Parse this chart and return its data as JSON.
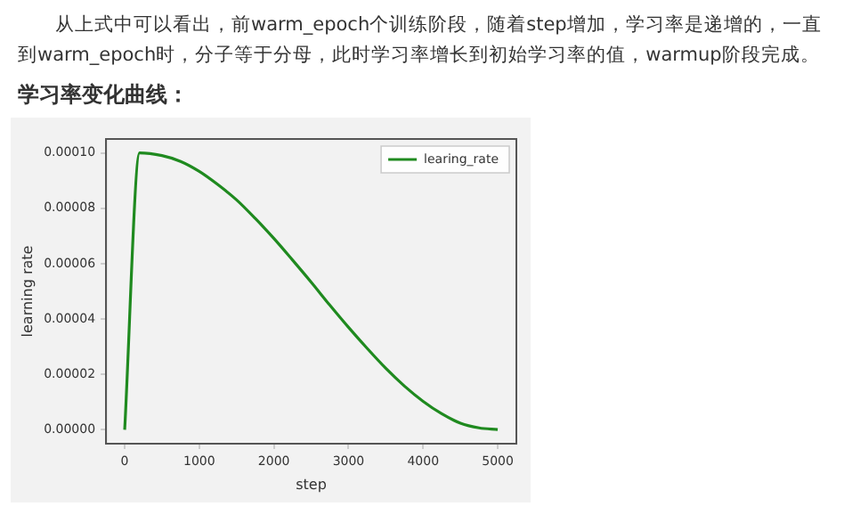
{
  "chart_data": {
    "type": "line",
    "title": "学习率变化曲线：",
    "annotations": [
      "从上式中可以看出，前warm_epoch个训练阶段，随着step增加，学习率是递增的，一直到warm_epoch时，分子等于分母，此时学习率增长到初始学习率的值，warmup阶段完成。"
    ],
    "xlabel": "step",
    "ylabel": "learning rate",
    "series": [
      {
        "name": "learing_rate",
        "color": "#1f8a1f",
        "x": [
          0,
          200,
          500,
          750,
          1000,
          1250,
          1500,
          1750,
          2000,
          2250,
          2500,
          2750,
          3000,
          3250,
          3500,
          3750,
          4000,
          4250,
          4500,
          4750,
          5000
        ],
        "values": [
          0,
          0.0001,
          9.9e-05,
          9.69e-05,
          9.33e-05,
          8.85e-05,
          8.3e-05,
          7.63e-05,
          6.91e-05,
          6.13e-05,
          5.33e-05,
          4.5e-05,
          3.7e-05,
          2.94e-05,
          2.22e-05,
          1.58e-05,
          1.03e-05,
          5.8e-06,
          2.4e-06,
          7e-07,
          1e-07
        ]
      }
    ],
    "xlim": [
      -250,
      5250
    ],
    "xticks": [
      0,
      1000,
      2000,
      3000,
      4000,
      5000
    ],
    "ylim": [
      -5e-06,
      0.000105
    ],
    "yticks": [
      {
        "value": 0,
        "label": "0.00000"
      },
      {
        "value": 2e-05,
        "label": "0.00002"
      },
      {
        "value": 4e-05,
        "label": "0.00004"
      },
      {
        "value": 6e-05,
        "label": "0.00006"
      },
      {
        "value": 8e-05,
        "label": "0.00008"
      },
      {
        "value": 0.0001,
        "label": "0.00010"
      }
    ],
    "legend": "top right",
    "marker": "none",
    "line_style": "solid",
    "grid": false
  }
}
